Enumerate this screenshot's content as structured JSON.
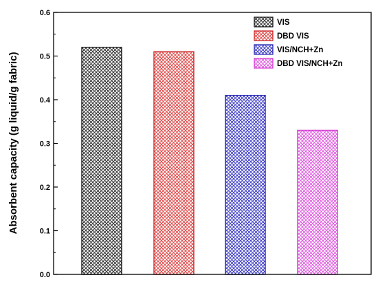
{
  "chart_data": {
    "type": "bar",
    "title": "",
    "xlabel": "",
    "ylabel": "Absorbent capacity (g liquid/g fabric)",
    "ylim": [
      0,
      0.6
    ],
    "yticks": [
      "0.0",
      "0.1",
      "0.2",
      "0.3",
      "0.4",
      "0.5",
      "0.6"
    ],
    "legend_position": "top-right",
    "grid": false,
    "series": [
      {
        "name": "VIS",
        "value": 0.52,
        "edge": "#1a1a1a",
        "pattern": "#3a3a3a"
      },
      {
        "name": "DBD VIS",
        "value": 0.51,
        "edge": "#cc2a2a",
        "pattern": "#e05050"
      },
      {
        "name": "VIS/NCH+Zn",
        "value": 0.41,
        "edge": "#2a2ab5",
        "pattern": "#4545c8"
      },
      {
        "name": "DBD VIS/NCH+Zn",
        "value": 0.33,
        "edge": "#d63ad6",
        "pattern": "#e060e0"
      }
    ]
  }
}
